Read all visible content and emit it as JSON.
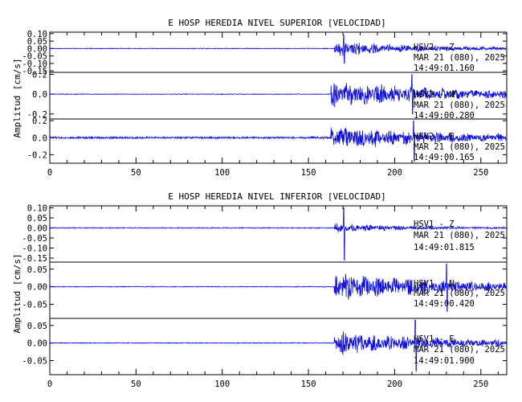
{
  "chart_data": [
    {
      "type": "line",
      "title": "E HOSP HEREDIA NIVEL SUPERIOR [VELOCIDAD]",
      "ylabel": "Amplitud [cm/s]",
      "xlim": [
        0,
        265
      ],
      "x_ticks": [
        "0",
        "50",
        "100",
        "150",
        "200",
        "250"
      ],
      "line_color": "#1010e0",
      "traces": [
        {
          "ylim": [
            -0.16,
            0.11
          ],
          "y_ticks": [
            "0.10",
            "0.05",
            "0.00",
            "-0.05",
            "-0.10",
            "-0.15"
          ],
          "y_tick_values": [
            0.1,
            0.05,
            0.0,
            -0.05,
            -0.1,
            -0.15
          ],
          "labels": [
            "HSV2 - Z",
            "MAR 21 (080), 2025",
            "14:49:01.160"
          ],
          "noise": 0.002,
          "onset": 165,
          "peak_time": 170.5,
          "peak_pos": 0.09,
          "peak_neg": -0.1,
          "coda_amp": 0.045,
          "decay": 60
        },
        {
          "ylim": [
            -0.25,
            0.22
          ],
          "y_ticks": [
            "0.2",
            "0.0",
            "-0.2"
          ],
          "y_tick_values": [
            0.2,
            0.0,
            -0.2
          ],
          "labels": [
            "HSV2 - N",
            "MAR 21 (080), 2025",
            "14:49:00.280"
          ],
          "noise": 0.003,
          "onset": 163,
          "peak_time": 210,
          "peak_pos": 0.2,
          "peak_neg": -0.2,
          "coda_amp": 0.12,
          "decay": 80
        },
        {
          "ylim": [
            -0.3,
            0.22
          ],
          "y_ticks": [
            "0.2",
            "0.0",
            "-0.2"
          ],
          "y_tick_values": [
            0.2,
            0.0,
            -0.2
          ],
          "labels": [
            "HSV2 - E",
            "MAR 21 (080), 2025",
            "14:49:00.165"
          ],
          "noise": 0.01,
          "onset": 163,
          "peak_time": 211,
          "peak_pos": 0.2,
          "peak_neg": -0.28,
          "coda_amp": 0.12,
          "decay": 80
        }
      ]
    },
    {
      "type": "line",
      "title": "E HOSP HEREDIA NIVEL INFERIOR [VELOCIDAD]",
      "ylabel": "Amplitud [cm/s]",
      "xlim": [
        0,
        265
      ],
      "x_ticks": [
        "0",
        "50",
        "100",
        "150",
        "200",
        "250"
      ],
      "line_color": "#1010e0",
      "traces": [
        {
          "ylim": [
            -0.17,
            0.11
          ],
          "y_ticks": [
            "0.10",
            "0.05",
            "0.00",
            "-0.05",
            "-0.10",
            "-0.15"
          ],
          "y_tick_values": [
            0.1,
            0.05,
            0.0,
            -0.05,
            -0.1,
            -0.15
          ],
          "labels": [
            "HSV1 - Z",
            "MAR 21 (080), 2025",
            "14:49:01.815"
          ],
          "noise": 0.002,
          "onset": 165,
          "peak_time": 170.5,
          "peak_pos": 0.1,
          "peak_neg": -0.16,
          "coda_amp": 0.02,
          "decay": 50
        },
        {
          "ylim": [
            -0.09,
            0.07
          ],
          "y_ticks": [
            "0.05",
            "0.00",
            "-0.05"
          ],
          "y_tick_values": [
            0.05,
            0.0,
            -0.05
          ],
          "labels": [
            "HSV1 - N",
            "MAR 21 (080), 2025",
            "14:49:00.420"
          ],
          "noise": 0.001,
          "onset": 165,
          "peak_time": 230,
          "peak_pos": 0.065,
          "peak_neg": -0.07,
          "coda_amp": 0.035,
          "decay": 80
        },
        {
          "ylim": [
            -0.09,
            0.07
          ],
          "y_ticks": [
            "0.05",
            "0.00",
            "-0.05"
          ],
          "y_tick_values": [
            0.05,
            0.0,
            -0.05
          ],
          "labels": [
            "HSV1 - E",
            "MAR 21 (080), 2025",
            "14:49:01.900"
          ],
          "noise": 0.001,
          "onset": 165,
          "peak_time": 212,
          "peak_pos": 0.065,
          "peak_neg": -0.08,
          "coda_amp": 0.03,
          "decay": 70
        }
      ]
    }
  ]
}
